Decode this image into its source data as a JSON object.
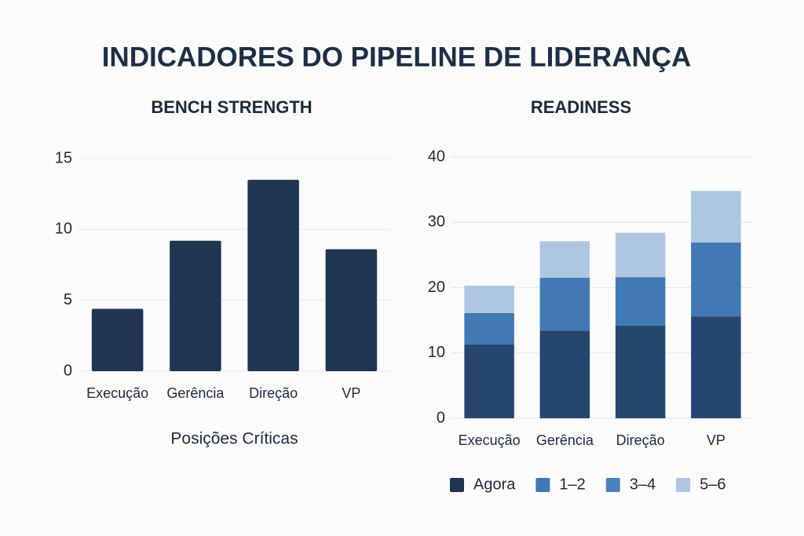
{
  "title": "INDICADORES DO PIPELINE DE LIDERANÇA",
  "chart_data": [
    {
      "type": "bar",
      "title": "BENCH STRENGTH",
      "x_label": "Posições Críticas",
      "categories": [
        "Execução",
        "Gerência",
        "Direção",
        "VP"
      ],
      "values": [
        4.4,
        9.2,
        13.5,
        8.6
      ],
      "color": "#1f3550",
      "ylim": [
        0,
        15
      ],
      "yticks": [
        0,
        5,
        10,
        15
      ],
      "grid": true
    },
    {
      "type": "stacked_bar",
      "title": "READINESS",
      "categories": [
        "Execução",
        "Gerência",
        "Direção",
        "VP"
      ],
      "series": [
        {
          "name": "Agora",
          "color": "#26466f",
          "values": [
            11.3,
            13.4,
            14.2,
            15.6
          ]
        },
        {
          "name": "1–2",
          "color": "#4179b5",
          "values": [
            4.8,
            8.1,
            7.4,
            11.3
          ]
        },
        {
          "name": "3–4",
          "color": "#4a80bf",
          "values": [
            0,
            0,
            0,
            0
          ]
        },
        {
          "name": "5–6",
          "color": "#aec6e0",
          "values": [
            4.2,
            5.6,
            6.8,
            7.9
          ]
        }
      ],
      "ylim": [
        0,
        40
      ],
      "yticks": [
        0,
        10,
        20,
        30,
        40
      ],
      "grid": true,
      "legend": "bottom"
    }
  ]
}
